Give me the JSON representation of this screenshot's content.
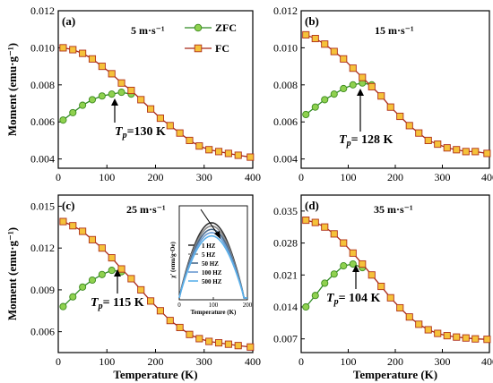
{
  "chart_data": [
    {
      "type": "scatter",
      "panel_label": "(a)",
      "annotation": "5 m·s⁻¹",
      "tp_label": "=130 K",
      "ylabel": "Moment (emu·g⁻¹)",
      "xlabel": "",
      "xlim": [
        0,
        400
      ],
      "ylim": [
        0.0035,
        0.012
      ],
      "xticks": [
        "0",
        "100",
        "200",
        "300",
        "400"
      ],
      "yticks": [
        "0.004",
        "0.006",
        "0.008",
        "0.010",
        "0.012"
      ],
      "ytick_values": [
        0.004,
        0.006,
        0.008,
        0.01,
        0.012
      ],
      "legend": {
        "position": "top-right",
        "entries": [
          "ZFC",
          "FC"
        ]
      },
      "series": [
        {
          "name": "ZFC",
          "x": [
            10,
            30,
            50,
            70,
            90,
            110,
            130,
            150
          ],
          "y": [
            0.0061,
            0.0065,
            0.0069,
            0.0072,
            0.0074,
            0.0075,
            0.0076,
            0.0075
          ]
        },
        {
          "name": "FC",
          "x": [
            10,
            30,
            50,
            70,
            90,
            110,
            130,
            150,
            170,
            190,
            210,
            230,
            250,
            270,
            290,
            310,
            330,
            350,
            370,
            395
          ],
          "y": [
            0.01,
            0.0099,
            0.0097,
            0.0094,
            0.009,
            0.0086,
            0.0081,
            0.0077,
            0.0072,
            0.0067,
            0.0062,
            0.0058,
            0.0054,
            0.005,
            0.0047,
            0.0045,
            0.0044,
            0.0043,
            0.0042,
            0.0041
          ]
        }
      ]
    },
    {
      "type": "scatter",
      "panel_label": "(b)",
      "annotation": "15 m·s⁻¹",
      "tp_label": "= 128 K",
      "ylabel": "",
      "xlabel": "",
      "xlim": [
        0,
        400
      ],
      "ylim": [
        0.0035,
        0.012
      ],
      "xticks": [
        "0",
        "100",
        "200",
        "300",
        "400"
      ],
      "yticks": [
        "0.004",
        "0.006",
        "0.008",
        "0.010",
        "0.012"
      ],
      "ytick_values": [
        0.004,
        0.006,
        0.008,
        0.01,
        0.012
      ],
      "series": [
        {
          "name": "ZFC",
          "x": [
            10,
            30,
            50,
            70,
            90,
            110,
            130,
            150
          ],
          "y": [
            0.0064,
            0.0068,
            0.0072,
            0.0075,
            0.0078,
            0.008,
            0.0081,
            0.008
          ]
        },
        {
          "name": "FC",
          "x": [
            10,
            30,
            50,
            70,
            90,
            110,
            130,
            150,
            170,
            190,
            210,
            230,
            250,
            270,
            290,
            310,
            330,
            350,
            370,
            395
          ],
          "y": [
            0.0107,
            0.0105,
            0.0102,
            0.0098,
            0.0094,
            0.0089,
            0.0084,
            0.0079,
            0.0074,
            0.0068,
            0.0063,
            0.0058,
            0.0054,
            0.005,
            0.0048,
            0.0046,
            0.0045,
            0.0044,
            0.0044,
            0.0043
          ]
        }
      ]
    },
    {
      "type": "scatter",
      "panel_label": "(c)",
      "annotation": "25 m·s⁻¹",
      "tp_label": "= 115 K",
      "ylabel": "Moment (emu·g⁻¹)",
      "xlabel": "Temperature (K)",
      "xlim": [
        0,
        400
      ],
      "ylim": [
        0.0045,
        0.0158
      ],
      "xticks": [
        "0",
        "100",
        "200",
        "300",
        "400"
      ],
      "yticks": [
        "0.006",
        "0.009",
        "0.012",
        "0.015"
      ],
      "ytick_values": [
        0.006,
        0.009,
        0.012,
        0.015
      ],
      "series": [
        {
          "name": "ZFC",
          "x": [
            10,
            30,
            50,
            70,
            90,
            110,
            130
          ],
          "y": [
            0.0078,
            0.0085,
            0.0092,
            0.0097,
            0.0101,
            0.0104,
            0.0103
          ]
        },
        {
          "name": "FC",
          "x": [
            10,
            30,
            50,
            70,
            90,
            110,
            130,
            150,
            170,
            190,
            210,
            230,
            250,
            270,
            290,
            310,
            330,
            350,
            370,
            395
          ],
          "y": [
            0.0139,
            0.0136,
            0.0132,
            0.0126,
            0.012,
            0.0113,
            0.0105,
            0.0098,
            0.009,
            0.0082,
            0.0075,
            0.0068,
            0.0063,
            0.0058,
            0.0055,
            0.0053,
            0.0052,
            0.0051,
            0.005,
            0.0049
          ]
        }
      ],
      "inset": {
        "ylabel": "χ' (emu/g·Oe)",
        "xlabel": "Temperature (K)",
        "xlim": [
          0,
          200
        ],
        "xticks": [
          "0",
          "100",
          "200"
        ],
        "legend": [
          {
            "label": "1 HZ",
            "color": "#333333"
          },
          {
            "label": "5 HZ",
            "color": "#8a8a8a"
          },
          {
            "label": "50 HZ",
            "color": "#4a6a8a"
          },
          {
            "label": "100 HZ",
            "color": "#6a9ad0"
          },
          {
            "label": "500 HZ",
            "color": "#5ab0ea"
          }
        ]
      }
    },
    {
      "type": "scatter",
      "panel_label": "(d)",
      "annotation": "35 m·s⁻¹",
      "tp_label": "= 104 K",
      "ylabel": "",
      "xlabel": "Temperature (K)",
      "xlim": [
        0,
        400
      ],
      "ylim": [
        0.004,
        0.0385
      ],
      "xticks": [
        "0",
        "100",
        "200",
        "300",
        "400"
      ],
      "yticks": [
        "0.007",
        "0.014",
        "0.021",
        "0.028",
        "0.035"
      ],
      "ytick_values": [
        0.007,
        0.014,
        0.021,
        0.028,
        0.035
      ],
      "series": [
        {
          "name": "ZFC",
          "x": [
            10,
            30,
            50,
            70,
            90,
            110,
            130
          ],
          "y": [
            0.014,
            0.0165,
            0.0192,
            0.0212,
            0.023,
            0.0234,
            0.0226
          ]
        },
        {
          "name": "FC",
          "x": [
            10,
            30,
            50,
            70,
            90,
            110,
            130,
            150,
            170,
            190,
            210,
            230,
            250,
            270,
            290,
            310,
            330,
            350,
            370,
            395
          ],
          "y": [
            0.033,
            0.0325,
            0.0315,
            0.03,
            0.028,
            0.0258,
            0.0234,
            0.021,
            0.0185,
            0.016,
            0.0138,
            0.0118,
            0.0102,
            0.009,
            0.0082,
            0.0077,
            0.0074,
            0.0072,
            0.007,
            0.0069
          ]
        }
      ]
    }
  ],
  "colors": {
    "zfc_fill": "#8fd14f",
    "zfc_stroke": "#3c8a1e",
    "zfc_line": "#2e8b22",
    "fc_fill": "#f5c23a",
    "fc_stroke": "#b03018",
    "fc_line": "#a82818",
    "zfc_legend_text": "#1f7a1f",
    "fc_legend_text": "#c0392b"
  }
}
